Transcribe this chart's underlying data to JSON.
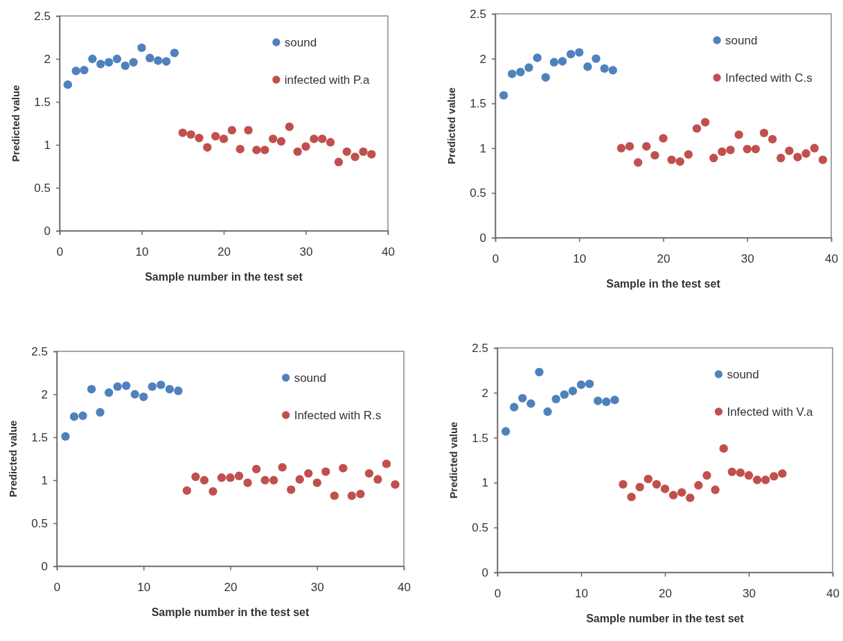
{
  "chart_data": [
    {
      "type": "scatter",
      "xlabel": "Sample number in the test set",
      "ylabel": "Predicted value",
      "xlim": [
        0,
        40
      ],
      "xticks": [
        0,
        10,
        20,
        30,
        40
      ],
      "ylim": [
        0,
        2.5
      ],
      "yticks": [
        0,
        0.5,
        1,
        1.5,
        2,
        2.5
      ],
      "legend": "top right",
      "marker": "circle",
      "series": [
        {
          "name": "sound",
          "color": "#4f81bd",
          "x": [
            1,
            2,
            3,
            4,
            5,
            6,
            7,
            8,
            9,
            10,
            11,
            12,
            13,
            14
          ],
          "values": [
            1.7,
            1.86,
            1.87,
            2.0,
            1.94,
            1.96,
            2.0,
            1.92,
            1.96,
            2.13,
            2.01,
            1.98,
            1.97,
            2.07
          ]
        },
        {
          "name": "infected with P.a",
          "color": "#c0504d",
          "x": [
            15,
            16,
            17,
            18,
            19,
            20,
            21,
            22,
            23,
            24,
            25,
            26,
            27,
            28,
            29,
            30,
            31,
            32,
            33,
            34,
            35,
            36,
            37,
            38
          ],
          "values": [
            1.14,
            1.12,
            1.08,
            0.97,
            1.1,
            1.07,
            1.17,
            0.95,
            1.17,
            0.94,
            0.94,
            1.07,
            1.04,
            1.21,
            0.92,
            0.98,
            1.07,
            1.07,
            1.03,
            0.8,
            0.92,
            0.86,
            0.92,
            0.89
          ]
        }
      ]
    },
    {
      "type": "scatter",
      "xlabel": "Sample in the test set",
      "ylabel": "Predicted value",
      "xlim": [
        0,
        40
      ],
      "xticks": [
        0,
        10,
        20,
        30,
        40
      ],
      "ylim": [
        0,
        2.5
      ],
      "yticks": [
        0,
        0.5,
        1,
        1.5,
        2,
        2.5
      ],
      "legend": "top right",
      "marker": "circle",
      "series": [
        {
          "name": "sound",
          "color": "#4f81bd",
          "x": [
            1,
            2,
            3,
            4,
            5,
            6,
            7,
            8,
            9,
            10,
            11,
            12,
            13,
            14
          ],
          "values": [
            1.59,
            1.83,
            1.85,
            1.9,
            2.01,
            1.79,
            1.96,
            1.97,
            2.05,
            2.07,
            1.91,
            2.0,
            1.89,
            1.87
          ]
        },
        {
          "name": "Infected with C.s",
          "color": "#c0504d",
          "x": [
            15,
            16,
            17,
            18,
            19,
            20,
            21,
            22,
            23,
            24,
            25,
            26,
            27,
            28,
            29,
            30,
            31,
            32,
            33,
            34,
            35,
            36,
            37,
            38,
            39
          ],
          "values": [
            1.0,
            1.02,
            0.84,
            1.02,
            0.92,
            1.11,
            0.87,
            0.85,
            0.93,
            1.22,
            1.29,
            0.89,
            0.96,
            0.98,
            1.15,
            0.99,
            0.99,
            1.17,
            1.1,
            0.89,
            0.97,
            0.9,
            0.94,
            1.0,
            0.87
          ]
        }
      ]
    },
    {
      "type": "scatter",
      "xlabel": "Sample number in the test set",
      "ylabel": "Predicted value",
      "xlim": [
        0,
        40
      ],
      "xticks": [
        0,
        10,
        20,
        30,
        40
      ],
      "ylim": [
        0,
        2.5
      ],
      "yticks": [
        0,
        0.5,
        1,
        1.5,
        2,
        2.5
      ],
      "legend": "top right",
      "marker": "circle",
      "series": [
        {
          "name": "sound",
          "color": "#4f81bd",
          "x": [
            1,
            2,
            3,
            4,
            5,
            6,
            7,
            8,
            9,
            10,
            11,
            12,
            13,
            14
          ],
          "values": [
            1.51,
            1.74,
            1.75,
            2.06,
            1.79,
            2.02,
            2.09,
            2.1,
            2.0,
            1.97,
            2.09,
            2.11,
            2.06,
            2.04
          ]
        },
        {
          "name": "Infected with R.s",
          "color": "#c0504d",
          "x": [
            15,
            16,
            17,
            18,
            19,
            20,
            21,
            22,
            23,
            24,
            25,
            26,
            27,
            28,
            29,
            30,
            31,
            32,
            33,
            34,
            35,
            36,
            37,
            38,
            39
          ],
          "values": [
            0.88,
            1.04,
            1.0,
            0.87,
            1.03,
            1.03,
            1.05,
            0.97,
            1.13,
            1.0,
            1.0,
            1.15,
            0.89,
            1.01,
            1.08,
            0.97,
            1.1,
            0.82,
            1.14,
            0.82,
            0.84,
            1.08,
            1.01,
            1.19,
            0.95
          ]
        }
      ]
    },
    {
      "type": "scatter",
      "xlabel": "Sample number in the test set",
      "ylabel": "Predicted value",
      "xlim": [
        0,
        40
      ],
      "xticks": [
        0,
        10,
        20,
        30,
        40
      ],
      "ylim": [
        0,
        2.5
      ],
      "yticks": [
        0,
        0.5,
        1,
        1.5,
        2,
        2.5
      ],
      "legend": "top right",
      "marker": "circle",
      "series": [
        {
          "name": "sound",
          "color": "#4f81bd",
          "x": [
            1,
            2,
            3,
            4,
            5,
            6,
            7,
            8,
            9,
            10,
            11,
            12,
            13,
            14
          ],
          "values": [
            1.57,
            1.84,
            1.94,
            1.88,
            2.23,
            1.79,
            1.93,
            1.98,
            2.02,
            2.09,
            2.1,
            1.91,
            1.9,
            1.92
          ]
        },
        {
          "name": "Infected with V.a",
          "color": "#c0504d",
          "x": [
            15,
            16,
            17,
            18,
            19,
            20,
            21,
            22,
            23,
            24,
            25,
            26,
            27,
            28,
            29,
            30,
            31,
            32,
            33,
            34
          ],
          "values": [
            0.98,
            0.84,
            0.95,
            1.04,
            0.98,
            0.93,
            0.86,
            0.89,
            0.83,
            0.97,
            1.08,
            0.92,
            1.38,
            1.12,
            1.11,
            1.08,
            1.03,
            1.03,
            1.07,
            1.1
          ]
        }
      ]
    }
  ]
}
